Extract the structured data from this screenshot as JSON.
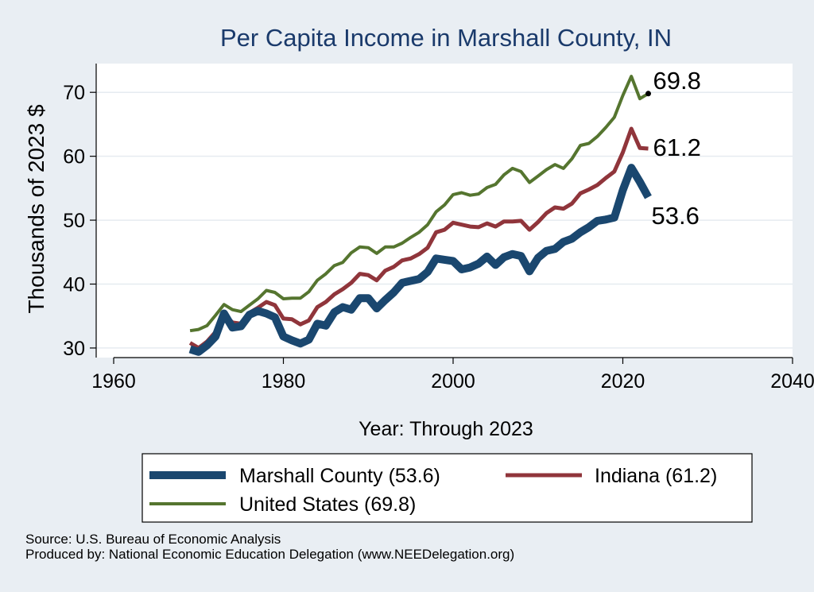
{
  "chart_data": {
    "type": "line",
    "title": "Per Capita Income in Marshall County, IN",
    "xlabel": "Year: Through 2023",
    "ylabel": "Thousands of 2023 $",
    "xlim": [
      1960,
      2040
    ],
    "ylim": [
      28.5,
      74.5
    ],
    "x_ticks": [
      1960,
      1980,
      2000,
      2020,
      2040
    ],
    "y_ticks": [
      30,
      40,
      50,
      60,
      70
    ],
    "grid": true,
    "legend_position": "bottom",
    "x": [
      1969,
      1970,
      1971,
      1972,
      1973,
      1974,
      1975,
      1976,
      1977,
      1978,
      1979,
      1980,
      1981,
      1982,
      1983,
      1984,
      1985,
      1986,
      1987,
      1988,
      1989,
      1990,
      1991,
      1992,
      1993,
      1994,
      1995,
      1996,
      1997,
      1998,
      1999,
      2000,
      2001,
      2002,
      2003,
      2004,
      2005,
      2006,
      2007,
      2008,
      2009,
      2010,
      2011,
      2012,
      2013,
      2014,
      2015,
      2016,
      2017,
      2018,
      2019,
      2020,
      2021,
      2022,
      2023
    ],
    "series": [
      {
        "name": "Marshall County (53.6)",
        "end_label": "53.6",
        "color": "#1a476f",
        "values": [
          29.8,
          29.4,
          30.4,
          31.8,
          35.4,
          33.2,
          33.4,
          35.2,
          35.8,
          35.4,
          34.8,
          31.8,
          31.2,
          30.7,
          31.3,
          33.8,
          33.5,
          35.6,
          36.4,
          36.0,
          37.8,
          37.8,
          36.2,
          37.5,
          38.7,
          40.2,
          40.5,
          40.8,
          41.9,
          44.0,
          43.8,
          43.6,
          42.3,
          42.6,
          43.2,
          44.3,
          43.0,
          44.2,
          44.7,
          44.4,
          42.0,
          44.1,
          45.2,
          45.5,
          46.6,
          47.1,
          48.1,
          48.9,
          49.9,
          50.1,
          50.4,
          54.7,
          58.2,
          56.0,
          53.6
        ]
      },
      {
        "name": "Indiana (61.2)",
        "end_label": "61.2",
        "color": "#90353b",
        "values": [
          30.8,
          30.0,
          31.0,
          32.5,
          35.3,
          34.0,
          33.8,
          35.5,
          36.3,
          37.2,
          36.7,
          34.6,
          34.5,
          33.7,
          34.3,
          36.4,
          37.2,
          38.4,
          39.2,
          40.2,
          41.6,
          41.4,
          40.6,
          42.1,
          42.7,
          43.7,
          44.0,
          44.7,
          45.7,
          48.1,
          48.5,
          49.6,
          49.3,
          49.0,
          48.9,
          49.5,
          49.0,
          49.8,
          49.8,
          49.9,
          48.5,
          49.7,
          51.1,
          52.0,
          51.8,
          52.6,
          54.2,
          54.8,
          55.5,
          56.6,
          57.6,
          60.6,
          64.3,
          61.3,
          61.2
        ]
      },
      {
        "name": "United States (69.8)",
        "end_label": "69.8",
        "color": "#55752f",
        "values": [
          32.7,
          32.9,
          33.5,
          35.1,
          36.8,
          36.0,
          35.7,
          36.7,
          37.7,
          39.0,
          38.7,
          37.7,
          37.8,
          37.8,
          38.8,
          40.6,
          41.6,
          42.9,
          43.4,
          44.9,
          45.8,
          45.7,
          44.8,
          45.8,
          45.8,
          46.4,
          47.3,
          48.1,
          49.3,
          51.3,
          52.4,
          54.0,
          54.3,
          53.9,
          54.1,
          55.1,
          55.6,
          57.1,
          58.1,
          57.6,
          55.9,
          56.9,
          57.9,
          58.7,
          58.1,
          59.6,
          61.7,
          62.0,
          63.1,
          64.5,
          66.1,
          69.5,
          72.5,
          69.0,
          69.8
        ]
      }
    ]
  },
  "footer": {
    "source": "Source: U.S. Bureau of Economic Analysis",
    "produced_by": "Produced by: National Economic Education Delegation (www.NEEDelegation.org)"
  }
}
